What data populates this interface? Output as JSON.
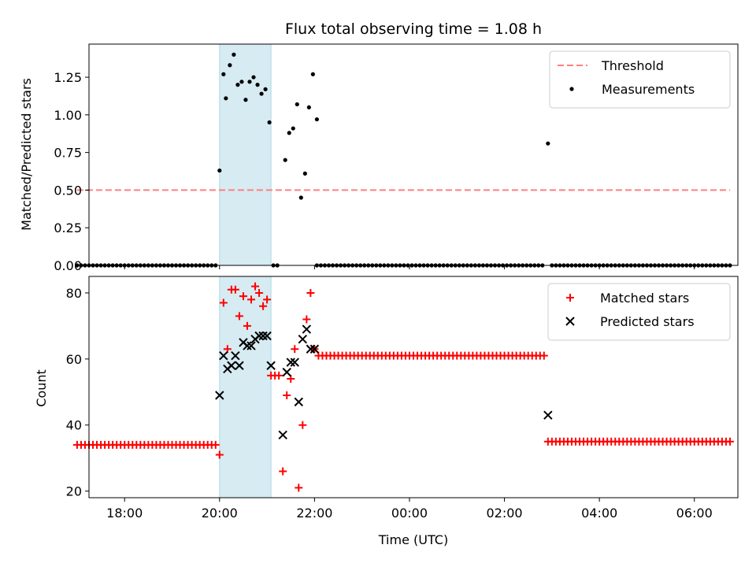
{
  "figure_title": "Flux total observing time = 1.08 h",
  "chart_data": [
    {
      "type": "scatter",
      "panel": "top",
      "xlabel": "",
      "ylabel": "Matched/Predicted stars",
      "xlim": [
        "17:15",
        "06:55"
      ],
      "ylim": [
        0,
        1.47
      ],
      "yticks": [
        "0.00",
        "0.25",
        "0.50",
        "0.75",
        "1.00",
        "1.25"
      ],
      "xticks": [
        "18:00",
        "20:00",
        "22:00",
        "00:00",
        "02:00",
        "04:00",
        "06:00"
      ],
      "legend_position": "top-right",
      "shaded_interval": [
        "20:00",
        "21:05"
      ],
      "threshold": {
        "name": "Threshold",
        "value": 0.5,
        "x_range": [
          "17:00",
          "06:45"
        ],
        "color": "#ff7f7f"
      },
      "series": [
        {
          "name": "Measurements",
          "color": "#000000",
          "points": [
            [
              "20:00",
              0.63
            ],
            [
              "20:05",
              1.27
            ],
            [
              "20:08",
              1.11
            ],
            [
              "20:13",
              1.33
            ],
            [
              "20:18",
              1.4
            ],
            [
              "20:23",
              1.2
            ],
            [
              "20:28",
              1.22
            ],
            [
              "20:33",
              1.1
            ],
            [
              "20:38",
              1.22
            ],
            [
              "20:43",
              1.25
            ],
            [
              "20:48",
              1.2
            ],
            [
              "20:53",
              1.14
            ],
            [
              "20:58",
              1.17
            ],
            [
              "21:03",
              0.95
            ],
            [
              "21:23",
              0.7
            ],
            [
              "21:28",
              0.88
            ],
            [
              "21:33",
              0.91
            ],
            [
              "21:38",
              1.07
            ],
            [
              "21:43",
              0.45
            ],
            [
              "21:48",
              0.61
            ],
            [
              "21:53",
              1.05
            ],
            [
              "21:58",
              1.27
            ],
            [
              "22:03",
              0.97
            ],
            [
              "02:55",
              0.81
            ]
          ],
          "zero_runs": [
            [
              "17:00",
              "19:58"
            ],
            [
              "21:08",
              "21:13"
            ],
            [
              "22:03",
              "02:50"
            ],
            [
              "03:00",
              "06:45"
            ]
          ]
        }
      ]
    },
    {
      "type": "scatter",
      "panel": "bottom",
      "xlabel": "Time (UTC)",
      "ylabel": "Count",
      "xlim": [
        "17:15",
        "06:55"
      ],
      "ylim": [
        18,
        85
      ],
      "yticks": [
        "20",
        "40",
        "60",
        "80"
      ],
      "xticks": [
        "18:00",
        "20:00",
        "22:00",
        "00:00",
        "02:00",
        "04:00",
        "06:00"
      ],
      "legend_position": "top-right",
      "shaded_interval": [
        "20:00",
        "21:05"
      ],
      "series": [
        {
          "name": "Matched stars",
          "color": "#ff0000",
          "marker": "plus",
          "constant_runs": [
            [
              34,
              "17:00",
              "19:58"
            ],
            [
              61,
              "22:05",
              "02:50"
            ],
            [
              35,
              "02:55",
              "06:45"
            ]
          ],
          "points": [
            [
              "20:00",
              31
            ],
            [
              "20:05",
              77
            ],
            [
              "20:10",
              63
            ],
            [
              "20:15",
              81
            ],
            [
              "20:20",
              81
            ],
            [
              "20:25",
              73
            ],
            [
              "20:30",
              79
            ],
            [
              "20:35",
              70
            ],
            [
              "20:40",
              78
            ],
            [
              "20:45",
              82
            ],
            [
              "20:50",
              80
            ],
            [
              "20:55",
              76
            ],
            [
              "21:00",
              78
            ],
            [
              "21:05",
              55
            ],
            [
              "21:10",
              55
            ],
            [
              "21:15",
              55
            ],
            [
              "21:20",
              26
            ],
            [
              "21:25",
              49
            ],
            [
              "21:30",
              54
            ],
            [
              "21:35",
              63
            ],
            [
              "21:40",
              21
            ],
            [
              "21:45",
              40
            ],
            [
              "21:50",
              72
            ],
            [
              "21:55",
              80
            ],
            [
              "22:00",
              63
            ]
          ]
        },
        {
          "name": "Predicted stars",
          "color": "#000000",
          "marker": "cross",
          "points": [
            [
              "20:00",
              49
            ],
            [
              "20:05",
              61
            ],
            [
              "20:10",
              57
            ],
            [
              "20:15",
              58
            ],
            [
              "20:20",
              61
            ],
            [
              "20:25",
              58
            ],
            [
              "20:30",
              65
            ],
            [
              "20:35",
              64
            ],
            [
              "20:40",
              64
            ],
            [
              "20:45",
              66
            ],
            [
              "20:50",
              67
            ],
            [
              "20:55",
              67
            ],
            [
              "21:00",
              67
            ],
            [
              "21:05",
              58
            ],
            [
              "21:20",
              37
            ],
            [
              "21:25",
              56
            ],
            [
              "21:30",
              59
            ],
            [
              "21:35",
              59
            ],
            [
              "21:40",
              47
            ],
            [
              "21:45",
              66
            ],
            [
              "21:50",
              69
            ],
            [
              "21:55",
              63
            ],
            [
              "22:00",
              63
            ],
            [
              "02:55",
              43
            ]
          ]
        }
      ]
    }
  ]
}
